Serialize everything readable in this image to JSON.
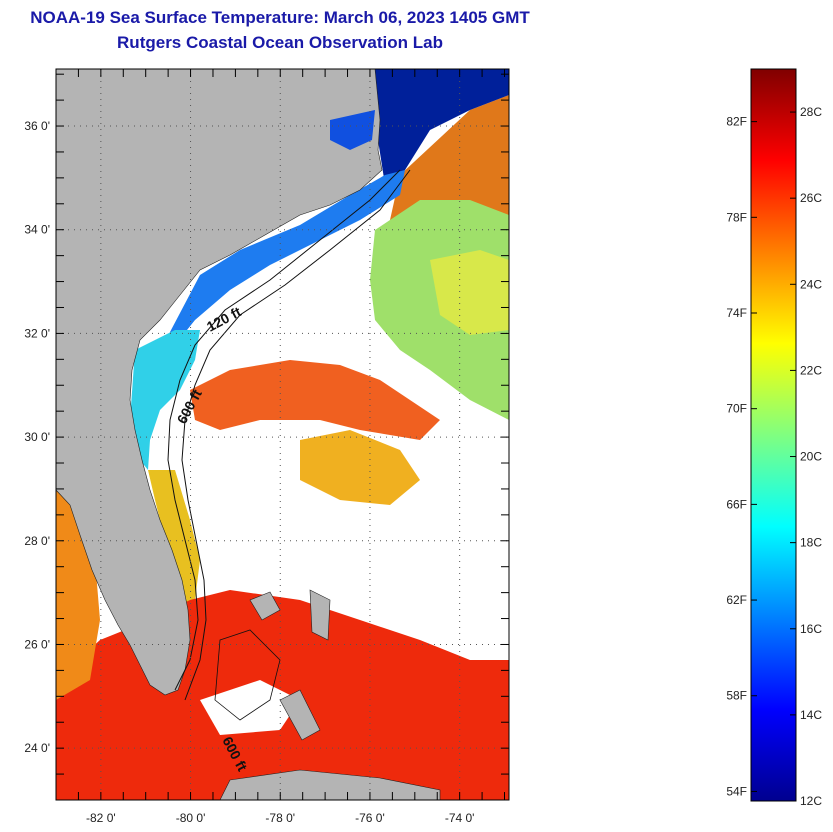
{
  "title": {
    "line1": "NOAA-19 Sea Surface Temperature:  March 06, 2023 1405 GMT",
    "line2": "Rutgers Coastal Ocean Observation Lab"
  },
  "map": {
    "lat_ticks": [
      {
        "value": 36,
        "label": "36 0'"
      },
      {
        "value": 34,
        "label": "34 0'"
      },
      {
        "value": 32,
        "label": "32 0'"
      },
      {
        "value": 30,
        "label": "30 0'"
      },
      {
        "value": 28,
        "label": "28 0'"
      },
      {
        "value": 26,
        "label": "26 0'"
      },
      {
        "value": 24,
        "label": "24 0'"
      }
    ],
    "lon_ticks": [
      {
        "value": -82,
        "label": "-82 0'"
      },
      {
        "value": -80,
        "label": "-80 0'"
      },
      {
        "value": -78,
        "label": "-78 0'"
      },
      {
        "value": -76,
        "label": "-76 0'"
      },
      {
        "value": -74,
        "label": "-74 0'"
      }
    ],
    "lat_range": [
      23.0,
      37.1
    ],
    "lon_range": [
      -83.0,
      -72.9
    ],
    "contour_labels": [
      "120 ft",
      "600 ft",
      "600 ft"
    ],
    "land_color": "#b4b4b4",
    "cloud_color": "#ffffff"
  },
  "colorbar": {
    "fahrenheit_labels": [
      "82F",
      "78F",
      "74F",
      "70F",
      "66F",
      "62F",
      "58F",
      "54F"
    ],
    "fahrenheit_values": [
      82,
      78,
      74,
      70,
      66,
      62,
      58,
      54
    ],
    "celsius_labels": [
      "28C",
      "26C",
      "24C",
      "22C",
      "20C",
      "18C",
      "16C",
      "14C",
      "12C"
    ],
    "celsius_values": [
      28,
      26,
      24,
      22,
      20,
      18,
      16,
      14,
      12
    ],
    "range_celsius": [
      12,
      29
    ],
    "colormap": [
      "#00008f",
      "#0000ff",
      "#0080ff",
      "#00ffff",
      "#80ff80",
      "#ffff00",
      "#ff8000",
      "#ff0000",
      "#800000"
    ]
  }
}
